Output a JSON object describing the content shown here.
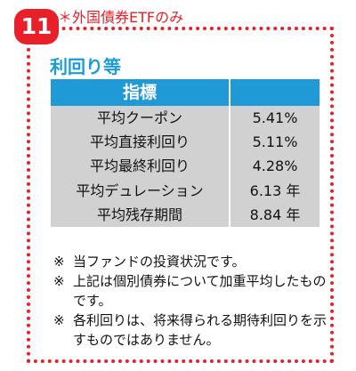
{
  "badge": {
    "number": "11",
    "note": "＊外国債券ETFのみ"
  },
  "colors": {
    "accent_red": "#e8202a",
    "title_blue": "#1a9cd8",
    "header_blue": "#1f9ad6",
    "table_gray": "#d1d1d1"
  },
  "section": {
    "title": "利回り等"
  },
  "table": {
    "header": "指標",
    "rows": [
      {
        "label": "平均クーポン",
        "value": "5.41%"
      },
      {
        "label": "平均直接利回り",
        "value": "5.11%"
      },
      {
        "label": "平均最終利回り",
        "value": "4.28%"
      },
      {
        "label": "平均デュレーション",
        "value": "6.13 年"
      },
      {
        "label": "平均残存期間",
        "value": "8.84 年"
      }
    ]
  },
  "notes": [
    {
      "mark": "※",
      "text": "当ファンドの投資状況です。"
    },
    {
      "mark": "※",
      "text": "上記は個別債券について加重平均したものです。"
    },
    {
      "mark": "※",
      "text": "各利回りは、将来得られる期待利回りを示すものではありません。"
    }
  ]
}
